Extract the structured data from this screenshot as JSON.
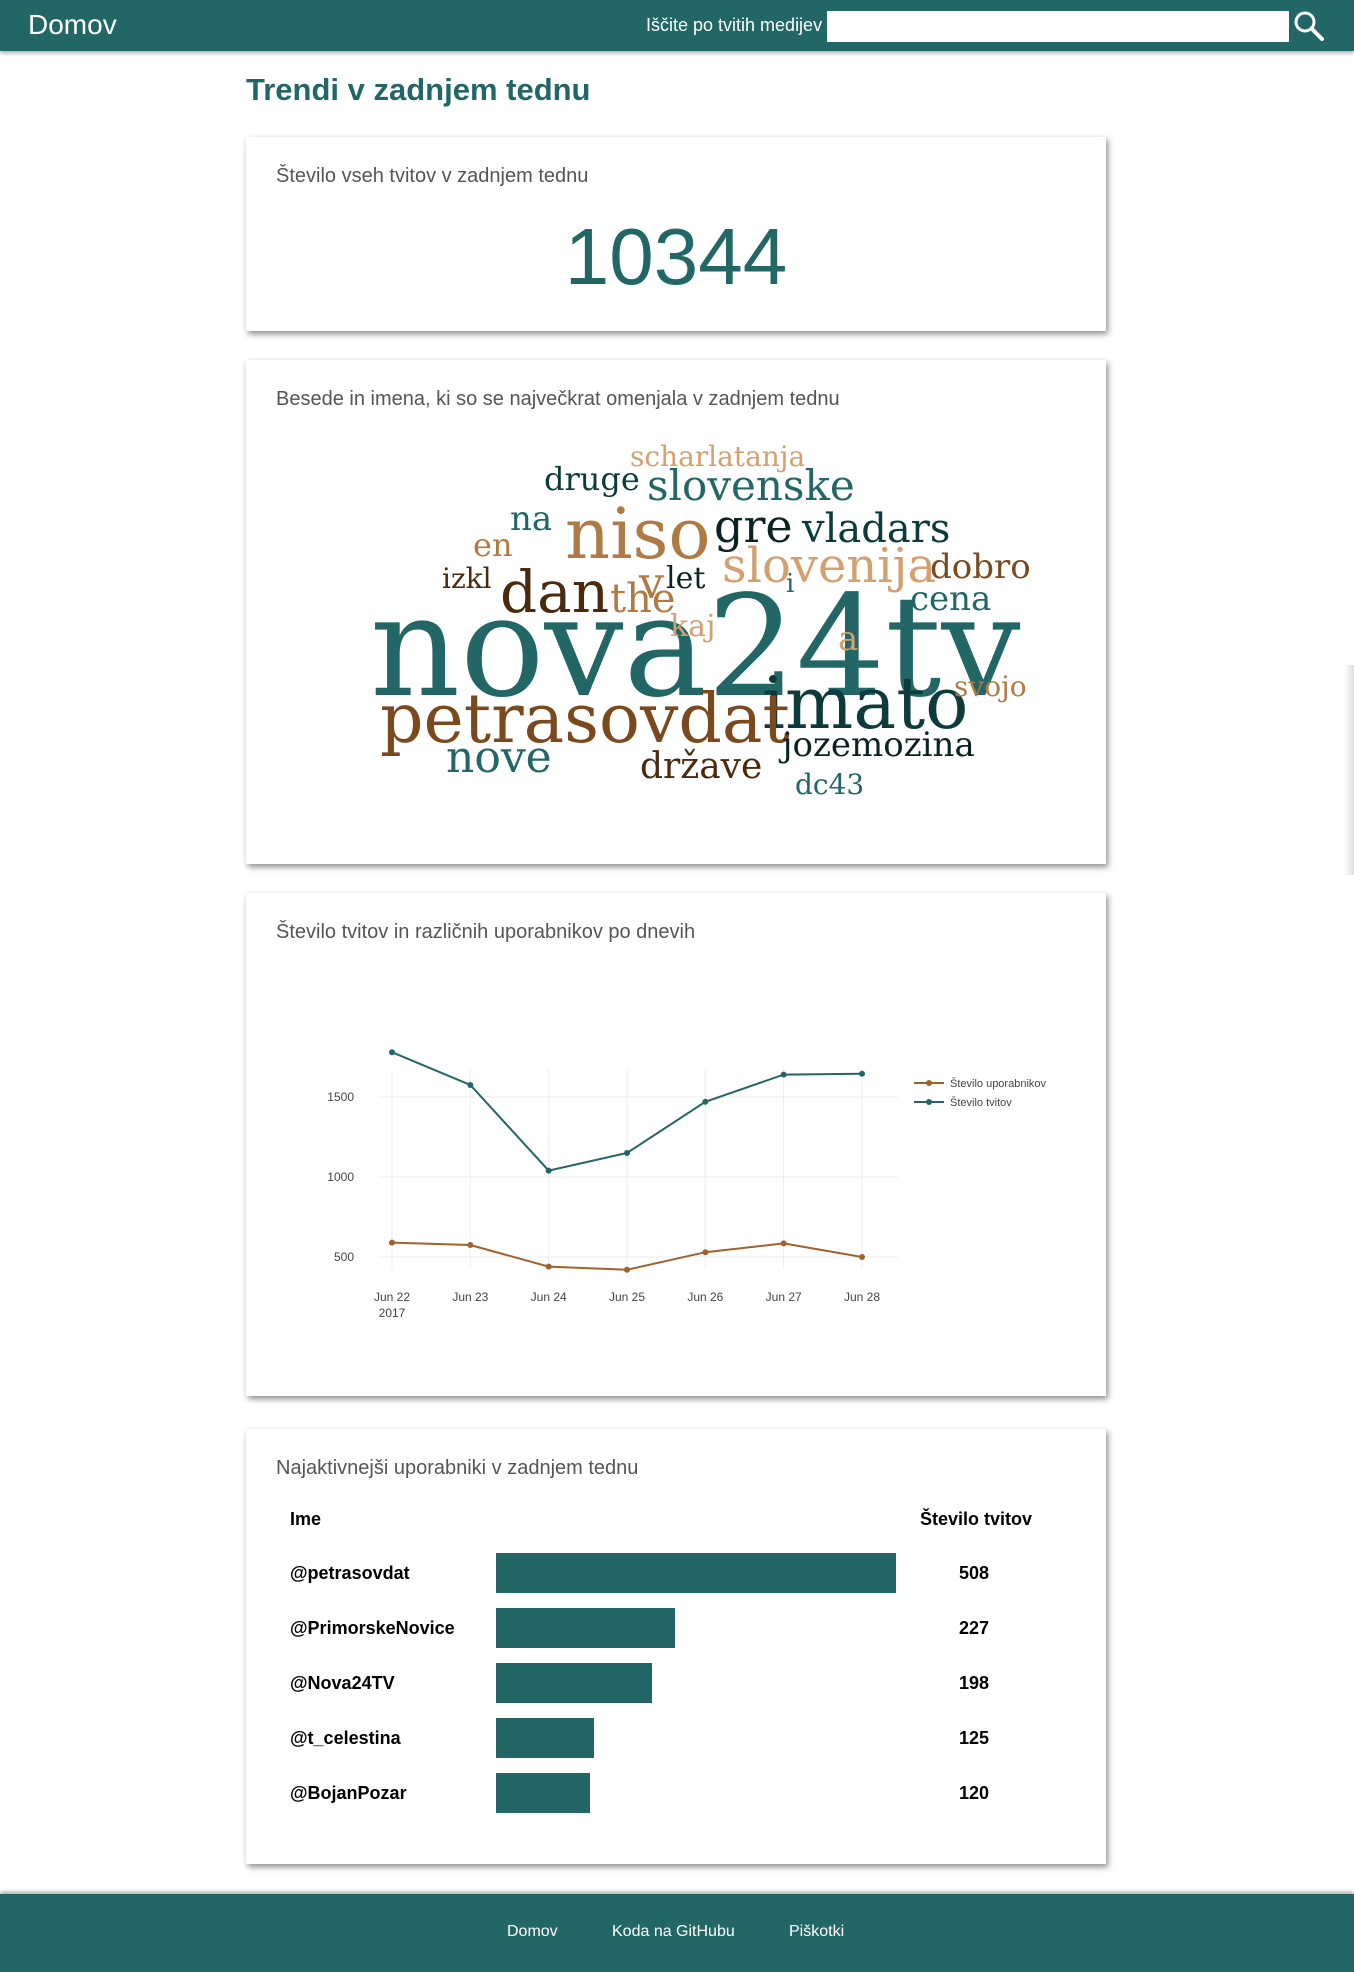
{
  "nav": {
    "brand": "Domov",
    "search_label": "Iščite po tvitih medijev",
    "search_value": "",
    "search_icon": "magnifier-icon"
  },
  "page_title": "Trendi v zadnjem tednu",
  "total_card": {
    "title": "Število vseh tvitov v zadnjem tednu",
    "value": "10344"
  },
  "wordcloud_card": {
    "title": "Besede in imena, ki so se največkrat omenjala v zadnjem tednu",
    "colors": [
      "#226666",
      "#0d3b3b",
      "#7a4a1e",
      "#d4a070",
      "#b07a45",
      "#4a2a0e"
    ],
    "words": [
      {
        "text": "nova24tv",
        "color": "#226666"
      },
      {
        "text": "petrasovdat",
        "color": "#7a4a1e"
      },
      {
        "text": "imato",
        "color": "#0d3b3b"
      },
      {
        "text": "niso",
        "color": "#b07a45"
      },
      {
        "text": "dan",
        "color": "#4a2a0e"
      },
      {
        "text": "slovenija",
        "color": "#d4a070"
      },
      {
        "text": "slovenske",
        "color": "#226666"
      },
      {
        "text": "gre",
        "color": "#0a2222"
      },
      {
        "text": "vladars",
        "color": "#0d3b3b"
      },
      {
        "text": "jozemozina",
        "color": "#0a2222"
      },
      {
        "text": "države",
        "color": "#4a2a0e"
      },
      {
        "text": "nove",
        "color": "#226666"
      },
      {
        "text": "scharlatanja",
        "color": "#d4a070"
      },
      {
        "text": "druge",
        "color": "#0d3b3b"
      },
      {
        "text": "dobro",
        "color": "#7a4a1e"
      },
      {
        "text": "cena",
        "color": "#226666"
      },
      {
        "text": "the",
        "color": "#b07a45"
      },
      {
        "text": "v",
        "color": "#b07a45"
      },
      {
        "text": "let",
        "color": "#0a2222"
      },
      {
        "text": "en",
        "color": "#b07a45"
      },
      {
        "text": "na",
        "color": "#226666"
      },
      {
        "text": "izkl",
        "color": "#4a2a0e"
      },
      {
        "text": "svojo",
        "color": "#b07a45"
      },
      {
        "text": "kaj",
        "color": "#d4a070"
      },
      {
        "text": "a",
        "color": "#d4a070"
      },
      {
        "text": "i",
        "color": "#226666"
      },
      {
        "text": "dc43",
        "color": "#226666"
      }
    ]
  },
  "chart_card": {
    "title": "Število tvitov in različnih uporabnikov po dnevih"
  },
  "chart_data": {
    "type": "line",
    "x": [
      "Jun 22",
      "Jun 23",
      "Jun 24",
      "Jun 25",
      "Jun 26",
      "Jun 27",
      "Jun 28"
    ],
    "x_year": "2017",
    "series": [
      {
        "name": "Število uporabnikov",
        "color": "#a0612b",
        "values": [
          590,
          575,
          440,
          420,
          530,
          585,
          500
        ]
      },
      {
        "name": "Število tvitov",
        "color": "#226666",
        "values": [
          1780,
          1575,
          1040,
          1150,
          1470,
          1640,
          1645
        ]
      }
    ],
    "y_ticks": [
      "500",
      "1000",
      "1500"
    ],
    "ylim": [
      300,
      1900
    ],
    "grid": true,
    "legend_position": "top-right"
  },
  "users_card": {
    "title": "Najaktivnejši uporabniki v zadnjem tednu",
    "col_name": "Ime",
    "col_count": "Število tvitov",
    "rows": [
      {
        "name": "@petrasovdat",
        "count": "508",
        "value": 508
      },
      {
        "name": "@PrimorskeNovice",
        "count": "227",
        "value": 227
      },
      {
        "name": "@Nova24TV",
        "count": "198",
        "value": 198
      },
      {
        "name": "@t_celestina",
        "count": "125",
        "value": 125
      },
      {
        "name": "@BojanPozar",
        "count": "120",
        "value": 120
      }
    ]
  },
  "footer": {
    "links": [
      "Domov",
      "Koda na GitHubu",
      "Piškotki"
    ]
  }
}
